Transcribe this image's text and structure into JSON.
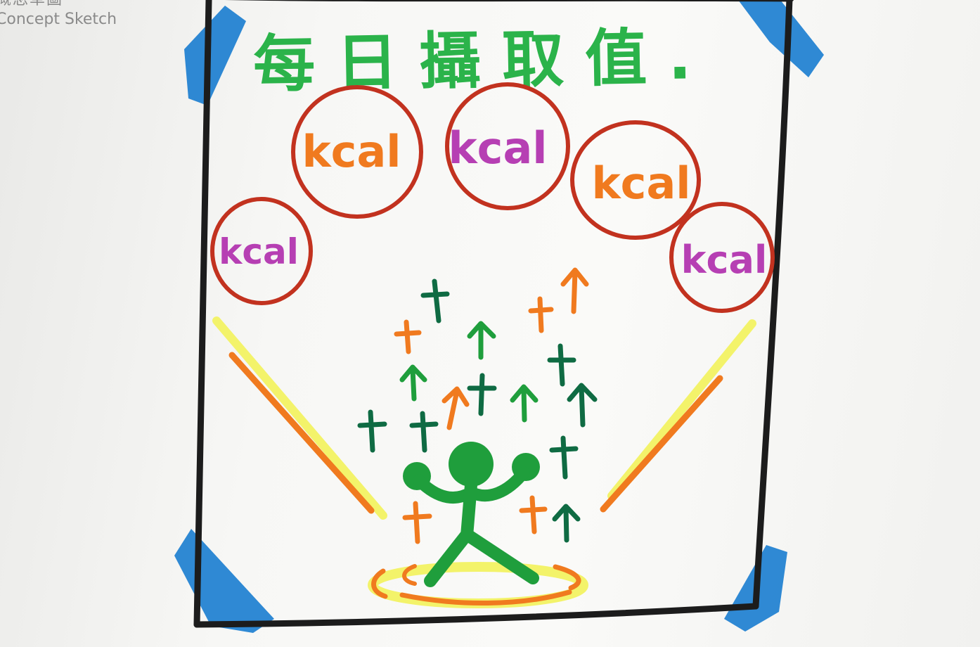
{
  "label": {
    "chinese": "概念草圖",
    "english": "Concept Sketch"
  },
  "sketch": {
    "title": "每日攝取值.",
    "bubbles": [
      {
        "text": "kcal",
        "color": "#b63fb3"
      },
      {
        "text": "kcal",
        "color": "#f07a1f"
      },
      {
        "text": "kcal",
        "color": "#b63fb3"
      },
      {
        "text": "kcal",
        "color": "#f07a1f"
      },
      {
        "text": "kcal",
        "color": "#b63fb3"
      }
    ],
    "colors": {
      "frame": "#1c1c1c",
      "tape": "#1d7fd0",
      "bubble_outline": "#c2321f",
      "title": "#2bb34a",
      "figure": "#1f9e3c",
      "dark_green": "#0f6b43",
      "orange": "#f07a1f",
      "yellow": "#f3f36a"
    }
  }
}
